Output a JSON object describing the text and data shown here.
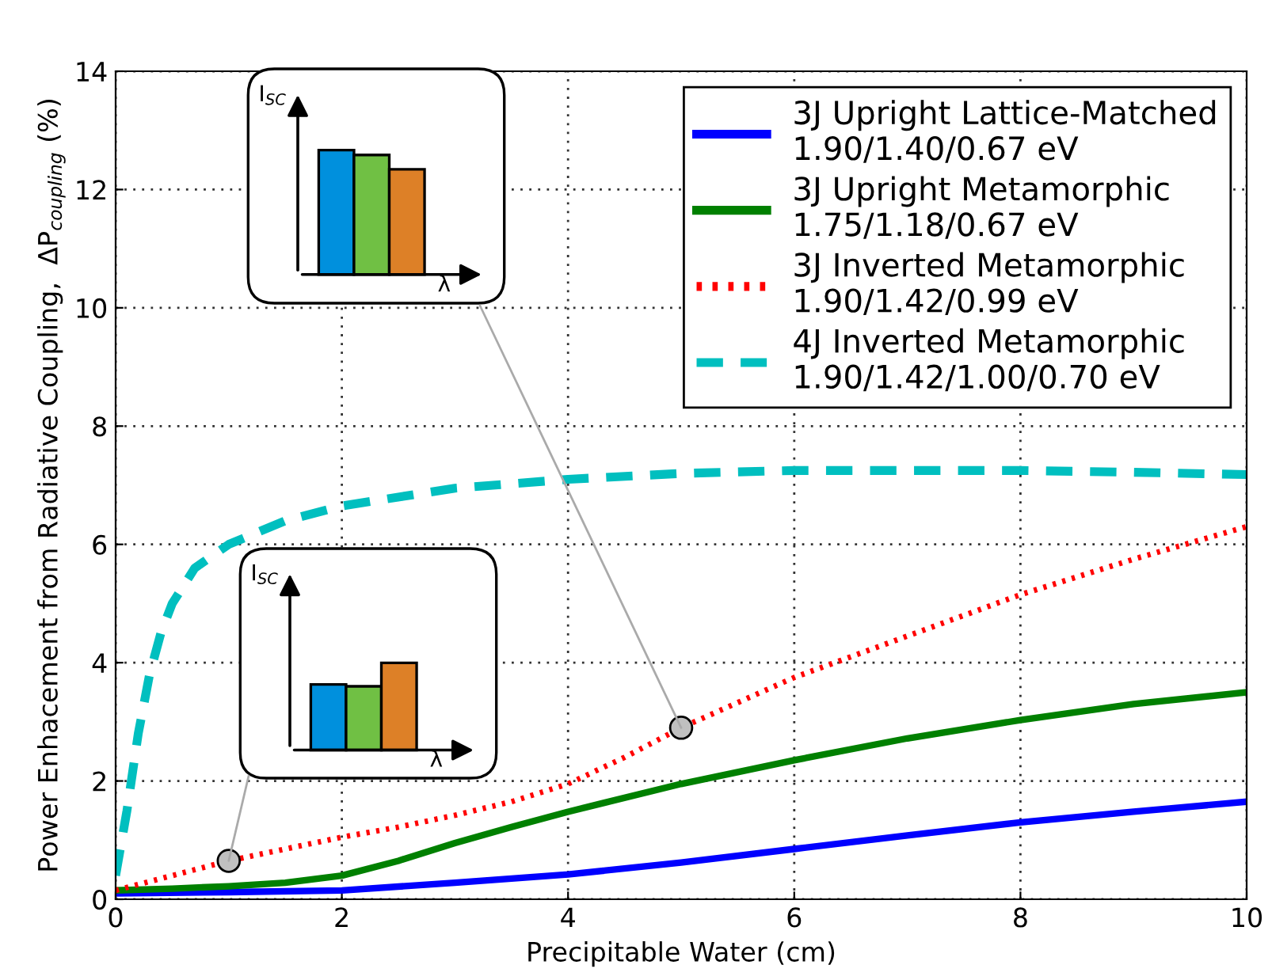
{
  "chart_data": {
    "type": "line",
    "xlabel": "Precipitable Water (cm)",
    "ylabel": "Power Enhacement from Radiative Coupling,  ΔP$_{coupling}$ (%)",
    "xlim": [
      0,
      10
    ],
    "ylim": [
      0,
      14
    ],
    "xticks": [
      0,
      2,
      4,
      6,
      8,
      10
    ],
    "yticks": [
      0,
      2,
      4,
      6,
      8,
      10,
      12,
      14
    ],
    "grid": true,
    "legend": "top right",
    "annotations": [
      "I$_{SC}$",
      "λ",
      "I$_{SC}$",
      "λ"
    ],
    "series": [
      {
        "name": "3J Upright Lattice-Matched\n1.90/1.40/0.67 eV",
        "color": "#0000ff",
        "line_style": "solid",
        "x": [
          0,
          1,
          2,
          3,
          4,
          5,
          6,
          7,
          8,
          9,
          10
        ],
        "values": [
          0.1,
          0.12,
          0.15,
          0.28,
          0.42,
          0.62,
          0.85,
          1.08,
          1.3,
          1.48,
          1.65
        ]
      },
      {
        "name": "3J Upright Metamorphic\n1.75/1.18/0.67 eV",
        "color": "#008000",
        "line_style": "solid",
        "x": [
          0,
          0.5,
          1,
          1.5,
          2,
          2.5,
          3,
          3.5,
          4,
          5,
          6,
          7,
          8,
          9,
          10
        ],
        "values": [
          0.15,
          0.18,
          0.22,
          0.28,
          0.4,
          0.65,
          0.95,
          1.22,
          1.48,
          1.95,
          2.35,
          2.72,
          3.03,
          3.3,
          3.5
        ]
      },
      {
        "name": "3J Inverted Metamorphic\n1.90/1.42/0.99 eV",
        "color": "#ff0000",
        "line_style": "dotted",
        "x": [
          0,
          0.5,
          1,
          1.5,
          2,
          2.5,
          3,
          3.5,
          4,
          4.5,
          5,
          6,
          7,
          8,
          9,
          10
        ],
        "values": [
          0.15,
          0.4,
          0.65,
          0.85,
          1.05,
          1.22,
          1.42,
          1.65,
          1.95,
          2.4,
          2.9,
          3.75,
          4.45,
          5.15,
          5.75,
          6.3
        ]
      },
      {
        "name": "4J Inverted Metamorphic\n1.90/1.42/1.00/0.70 eV",
        "color": "#00bfbf",
        "line_style": "dashed",
        "x": [
          0,
          0.1,
          0.2,
          0.3,
          0.4,
          0.5,
          0.7,
          1,
          1.5,
          2,
          3,
          4,
          5,
          6,
          7,
          8,
          9,
          10
        ],
        "values": [
          0.4,
          1.5,
          2.8,
          3.8,
          4.5,
          5.0,
          5.6,
          6.0,
          6.4,
          6.65,
          6.95,
          7.1,
          7.2,
          7.25,
          7.25,
          7.25,
          7.22,
          7.18
        ]
      }
    ]
  }
}
